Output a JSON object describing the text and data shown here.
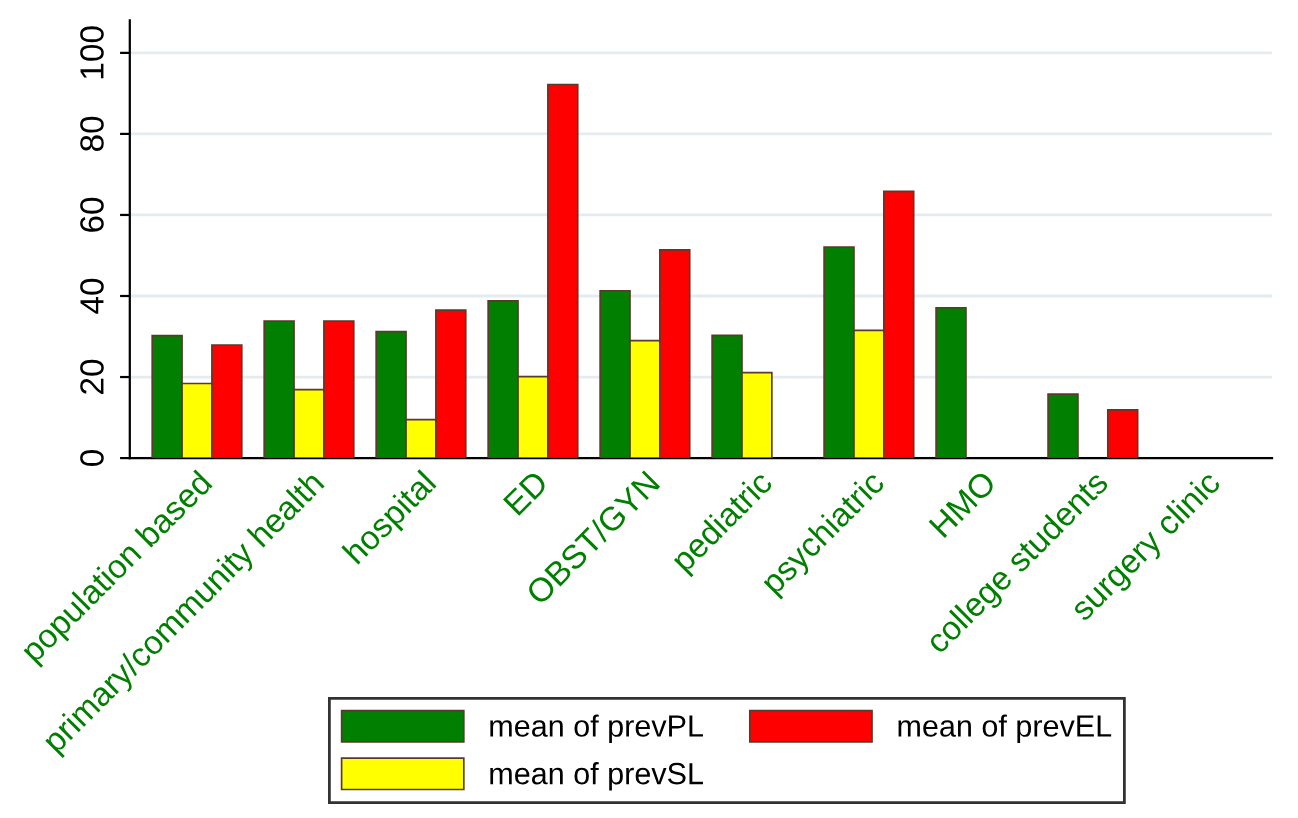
{
  "chart_data": {
    "type": "bar",
    "categories": [
      "population based",
      "primary/community health",
      "hospital",
      "ED",
      "OBST/GYN",
      "pediatric",
      "psychiatric",
      "HMO",
      "college students",
      "surgery clinic"
    ],
    "series": [
      {
        "name": "mean of prevPL",
        "color": "#007f00",
        "values": [
          30.2,
          33.8,
          31.2,
          38.8,
          41.3,
          30.3,
          52.1,
          37.1,
          15.8,
          null
        ]
      },
      {
        "name": "mean of prevSL",
        "color": "#ffff00",
        "values": [
          18.4,
          16.9,
          9.5,
          20.1,
          29.0,
          21.1,
          31.5,
          null,
          null,
          null
        ]
      },
      {
        "name": "mean of prevEL",
        "color": "#ff0000",
        "values": [
          27.9,
          33.8,
          36.5,
          92.2,
          51.4,
          null,
          65.8,
          null,
          11.9,
          null
        ]
      }
    ],
    "ylim": [
      0,
      108
    ],
    "yticks": [
      0,
      20,
      40,
      60,
      80,
      100
    ],
    "grid": "y",
    "legend": "bottom"
  }
}
